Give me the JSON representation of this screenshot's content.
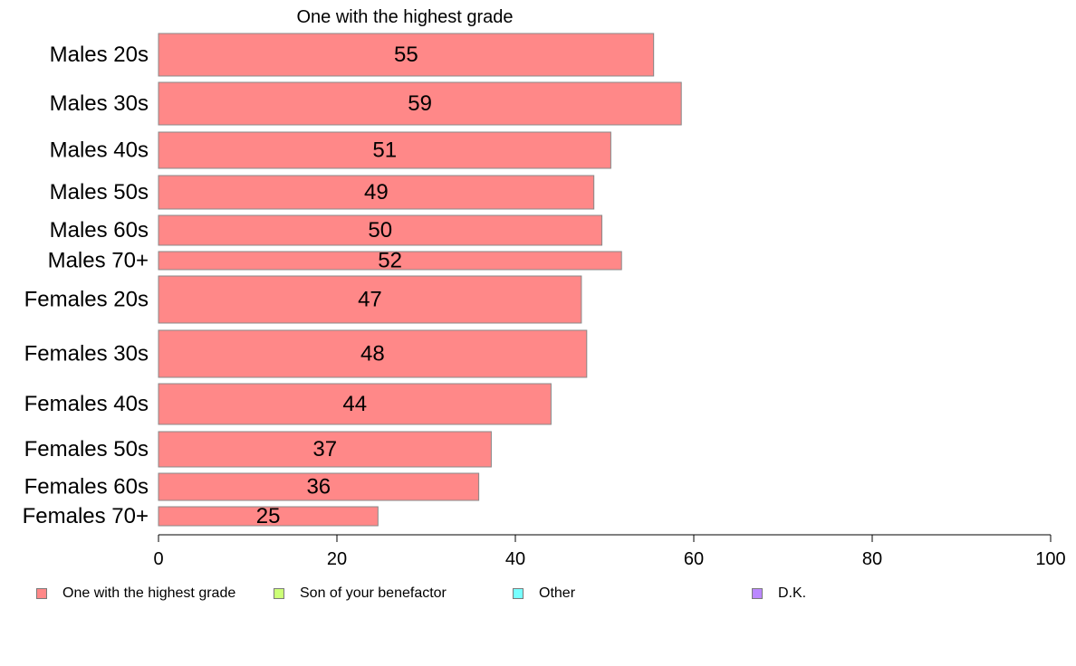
{
  "chart_data": {
    "type": "bar",
    "orientation": "horizontal",
    "title": "One with the highest grade",
    "xlabel": "",
    "ylabel": "",
    "xlim": [
      0,
      100
    ],
    "xticks": [
      "0",
      "20",
      "40",
      "60",
      "80",
      "100"
    ],
    "grid": false,
    "legend_position": "bottom",
    "categories": [
      "Males 20s",
      "Males 30s",
      "Males 40s",
      "Males 50s",
      "Males 60s",
      "Males 70+",
      "Females 20s",
      "Females 30s",
      "Females 40s",
      "Females 50s",
      "Females 60s",
      "Females 70+"
    ],
    "series": [
      {
        "name": "One with the highest grade",
        "color": "#ff8888",
        "values": [
          55.5,
          58.6,
          50.7,
          48.8,
          49.7,
          51.9,
          47.4,
          48.0,
          44.0,
          37.3,
          35.9,
          24.6
        ],
        "labels": [
          "55",
          "59",
          "51",
          "49",
          "50",
          "52",
          "47",
          "48",
          "44",
          "37",
          "36",
          "25"
        ]
      }
    ],
    "legend": [
      {
        "label": "One with the highest grade",
        "color": "#ff8888"
      },
      {
        "label": "Son of your benefactor",
        "color": "#ccff77"
      },
      {
        "label": "Other",
        "color": "#77ffff"
      },
      {
        "label": "D.K.",
        "color": "#bb88ff"
      }
    ],
    "bar_color": "#ff8888",
    "bar_edge_color": "#888888"
  }
}
